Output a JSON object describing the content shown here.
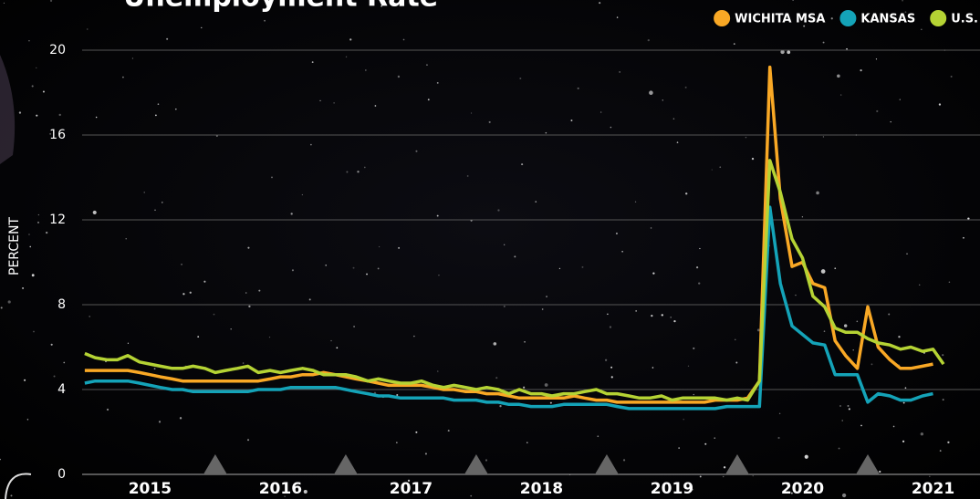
{
  "chart_data": {
    "type": "line",
    "title": "Unemployment Rate",
    "y_label": "PERCENT",
    "x": [
      2015,
      2015.08,
      2015.17,
      2015.25,
      2015.33,
      2015.42,
      2015.5,
      2015.58,
      2015.67,
      2015.75,
      2015.83,
      2015.92,
      2016,
      2016.08,
      2016.17,
      2016.25,
      2016.33,
      2016.42,
      2016.5,
      2016.58,
      2016.67,
      2016.75,
      2016.83,
      2016.92,
      2017,
      2017.08,
      2017.17,
      2017.25,
      2017.33,
      2017.42,
      2017.5,
      2017.58,
      2017.67,
      2017.75,
      2017.83,
      2017.92,
      2018,
      2018.08,
      2018.17,
      2018.25,
      2018.33,
      2018.42,
      2018.5,
      2018.58,
      2018.67,
      2018.75,
      2018.83,
      2018.92,
      2019,
      2019.08,
      2019.17,
      2019.25,
      2019.33,
      2019.42,
      2019.5,
      2019.58,
      2019.67,
      2019.75,
      2019.83,
      2019.92,
      2020,
      2020.08,
      2020.17,
      2020.25,
      2020.33,
      2020.42,
      2020.5,
      2020.58,
      2020.67,
      2020.75,
      2020.83,
      2020.92,
      2021,
      2021.08,
      2021.17,
      2021.25,
      2021.33,
      2021.42,
      2021.5,
      2021.58
    ],
    "series": [
      {
        "name": "WICHITA MSA",
        "color": "#f9a825",
        "values": [
          4.9,
          4.9,
          4.9,
          4.9,
          4.9,
          4.8,
          4.7,
          4.6,
          4.5,
          4.4,
          4.4,
          4.4,
          4.4,
          4.4,
          4.4,
          4.4,
          4.4,
          4.5,
          4.6,
          4.6,
          4.7,
          4.7,
          4.8,
          4.7,
          4.6,
          4.5,
          4.4,
          4.3,
          4.2,
          4.2,
          4.2,
          4.2,
          4.1,
          4.0,
          4.0,
          3.9,
          3.9,
          3.8,
          3.8,
          3.7,
          3.6,
          3.6,
          3.6,
          3.6,
          3.6,
          3.7,
          3.6,
          3.5,
          3.5,
          3.4,
          3.4,
          3.4,
          3.4,
          3.4,
          3.4,
          3.4,
          3.4,
          3.4,
          3.5,
          3.5,
          3.5,
          3.6,
          4.4,
          19.2,
          13.0,
          9.8,
          10.0,
          9.0,
          8.8,
          6.3,
          5.6,
          5.0,
          7.9,
          6.0,
          5.4,
          5.0,
          5.0,
          5.1,
          5.2,
          null
        ]
      },
      {
        "name": "KANSAS",
        "color": "#14a3b8",
        "values": [
          4.3,
          4.4,
          4.4,
          4.4,
          4.4,
          4.3,
          4.2,
          4.1,
          4.0,
          4.0,
          3.9,
          3.9,
          3.9,
          3.9,
          3.9,
          3.9,
          4.0,
          4.0,
          4.0,
          4.1,
          4.1,
          4.1,
          4.1,
          4.1,
          4.0,
          3.9,
          3.8,
          3.7,
          3.7,
          3.6,
          3.6,
          3.6,
          3.6,
          3.6,
          3.5,
          3.5,
          3.5,
          3.4,
          3.4,
          3.3,
          3.3,
          3.2,
          3.2,
          3.2,
          3.3,
          3.3,
          3.3,
          3.3,
          3.3,
          3.2,
          3.1,
          3.1,
          3.1,
          3.1,
          3.1,
          3.1,
          3.1,
          3.1,
          3.1,
          3.2,
          3.2,
          3.2,
          3.2,
          12.6,
          9.0,
          7.0,
          6.6,
          6.2,
          6.1,
          4.7,
          4.7,
          4.7,
          3.4,
          3.8,
          3.7,
          3.5,
          3.5,
          3.7,
          3.8,
          null
        ]
      },
      {
        "name": "U.S.",
        "color": "#b5d334",
        "values": [
          5.7,
          5.5,
          5.4,
          5.4,
          5.6,
          5.3,
          5.2,
          5.1,
          5.0,
          5.0,
          5.1,
          5.0,
          4.8,
          4.9,
          5.0,
          5.1,
          4.8,
          4.9,
          4.8,
          4.9,
          5.0,
          4.9,
          4.7,
          4.7,
          4.7,
          4.6,
          4.4,
          4.5,
          4.4,
          4.3,
          4.3,
          4.4,
          4.2,
          4.1,
          4.2,
          4.1,
          4.0,
          4.1,
          4.0,
          3.8,
          4.0,
          3.8,
          3.8,
          3.7,
          3.8,
          3.8,
          3.9,
          4.0,
          3.8,
          3.8,
          3.7,
          3.6,
          3.6,
          3.7,
          3.5,
          3.6,
          3.6,
          3.6,
          3.6,
          3.5,
          3.6,
          3.5,
          4.4,
          14.8,
          13.3,
          11.1,
          10.2,
          8.4,
          7.9,
          6.9,
          6.7,
          6.7,
          6.4,
          6.2,
          6.1,
          5.9,
          6.0,
          5.8,
          5.9,
          5.2
        ]
      }
    ],
    "xlim": [
      2014.98,
      2021.86
    ],
    "xticks": [
      {
        "value": 2015.5,
        "label": "2015"
      },
      {
        "value": 2016.5,
        "label": "2016"
      },
      {
        "value": 2017.5,
        "label": "2017"
      },
      {
        "value": 2018.5,
        "label": "2018"
      },
      {
        "value": 2019.5,
        "label": "2019"
      },
      {
        "value": 2020.5,
        "label": "2020"
      },
      {
        "value": 2021.5,
        "label": "2021"
      }
    ],
    "ylim": [
      0,
      20
    ],
    "yticks": [
      0,
      4,
      8,
      12,
      16,
      20
    ],
    "grid": true,
    "legend": "top-right"
  }
}
